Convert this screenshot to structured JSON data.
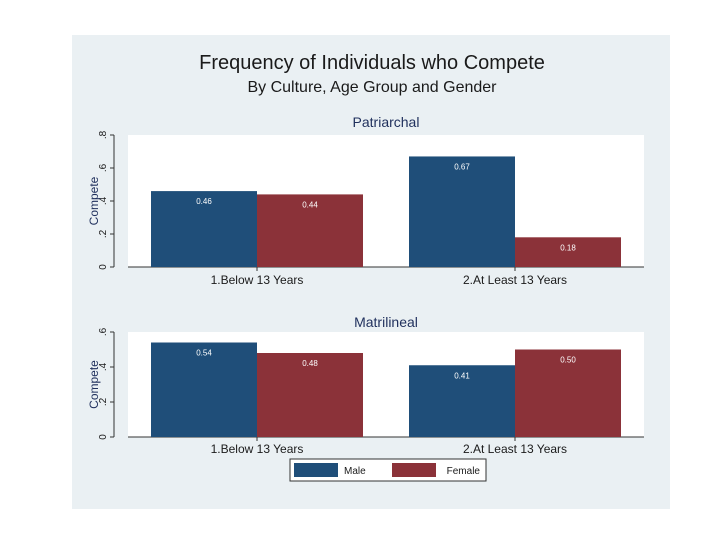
{
  "chart_data": {
    "type": "bar",
    "title": "Frequency of Individuals who Compete",
    "subtitle": "By Culture, Age Group and Gender",
    "colors": {
      "male": "#1f4e79",
      "female": "#8b3239",
      "frame": "#eaf0f3",
      "plot": "#ffffff"
    },
    "legend": {
      "placement": "bottom",
      "entries": [
        "Male",
        "Female"
      ]
    },
    "panels": [
      {
        "title": "Patriarchal",
        "ylabel": "Compete",
        "ylim": [
          0,
          0.8
        ],
        "yticks": [
          0,
          0.2,
          0.4,
          0.6,
          0.8
        ],
        "ytick_labels": [
          "0",
          ".2",
          ".4",
          ".6",
          ".8"
        ],
        "categories": [
          "1.Below 13 Years",
          "2.At Least  13 Years"
        ],
        "series": [
          {
            "name": "Male",
            "values": [
              0.46,
              0.67
            ],
            "labels": [
              "0.46",
              "0.67"
            ]
          },
          {
            "name": "Female",
            "values": [
              0.44,
              0.18
            ],
            "labels": [
              "0.44",
              "0.18"
            ]
          }
        ]
      },
      {
        "title": "Matrilineal",
        "ylabel": "Compete",
        "ylim": [
          0,
          0.6
        ],
        "yticks": [
          0,
          0.2,
          0.4,
          0.6
        ],
        "ytick_labels": [
          "0",
          ".2",
          ".4",
          ".6"
        ],
        "categories": [
          "1.Below 13 Years",
          "2.At Least  13 Years"
        ],
        "series": [
          {
            "name": "Male",
            "values": [
              0.54,
              0.41
            ],
            "labels": [
              "0.54",
              "0.41"
            ]
          },
          {
            "name": "Female",
            "values": [
              0.48,
              0.5
            ],
            "labels": [
              "0.48",
              "0.50"
            ]
          }
        ]
      }
    ]
  }
}
